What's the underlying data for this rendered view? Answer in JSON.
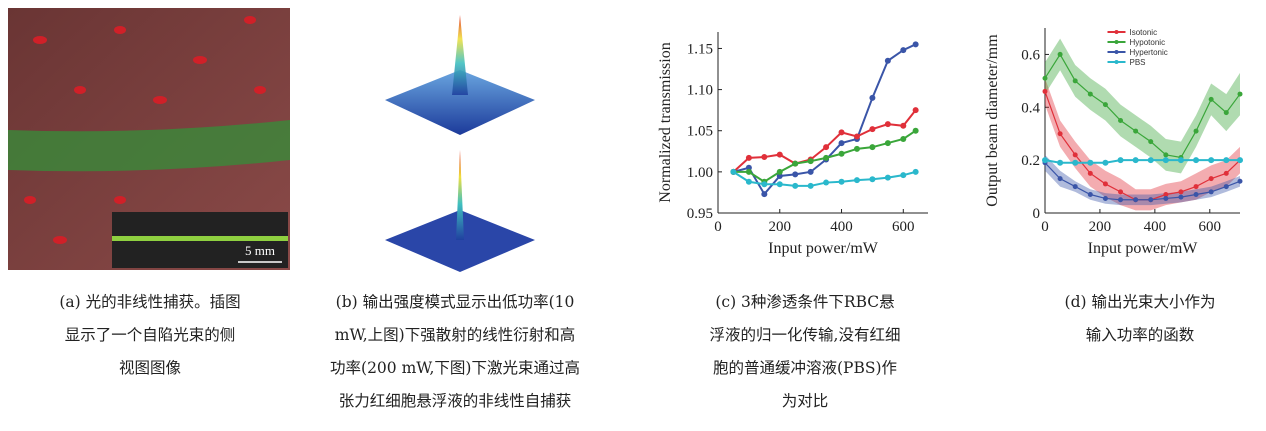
{
  "panels": {
    "a": {
      "scale_label": "5 mm",
      "caption": [
        "(a) 光的非线性捕获。插图",
        "显示了一个自陷光束的侧",
        "视图图像"
      ]
    },
    "b": {
      "caption": [
        "(b) 输出强度模式显示出低功率(10",
        "mW,上图)下强散射的线性衍射和高",
        "功率(200 mW,下图)下激光束通过高",
        "张力红细胞悬浮液的非线性自捕获"
      ]
    },
    "c": {
      "caption": [
        "(c) 3种渗透条件下RBC悬",
        "浮液的归一化传输,没有红细",
        "胞的普通缓冲溶液(PBS)作",
        "为对比"
      ]
    },
    "d": {
      "caption": [
        "(d) 输出光束大小作为",
        "输入功率的函数"
      ]
    }
  },
  "chart_data": [
    {
      "type": "line",
      "x_label": "Input power/mW",
      "y_label": "Normalized transmission",
      "x": [
        50,
        100,
        150,
        200,
        250,
        300,
        350,
        400,
        450,
        500,
        550,
        600,
        640
      ],
      "xlim": [
        0,
        680
      ],
      "xticks": [
        0,
        200,
        400,
        600
      ],
      "ylim": [
        0.95,
        1.17
      ],
      "yticks": [
        0.95,
        {
          "value": 1,
          "label": "1.00"
        },
        1.05,
        {
          "value": 1.1,
          "label": "1.10"
        },
        1.15
      ],
      "series": [
        {
          "color": "#3a55a8",
          "values": [
            1.0,
            1.005,
            0.973,
            0.995,
            0.997,
            1.0,
            1.015,
            1.035,
            1.04,
            1.09,
            1.135,
            1.148,
            1.155
          ]
        },
        {
          "color": "#e0303a",
          "values": [
            1.0,
            1.017,
            1.018,
            1.021,
            1.01,
            1.015,
            1.03,
            1.048,
            1.043,
            1.052,
            1.058,
            1.056,
            1.075
          ]
        },
        {
          "color": "#3aa63a",
          "values": [
            1.0,
            1.0,
            0.988,
            1.0,
            1.01,
            1.013,
            1.017,
            1.022,
            1.028,
            1.03,
            1.035,
            1.04,
            1.05
          ]
        },
        {
          "color": "#2ab8cc",
          "values": [
            1.0,
            0.988,
            0.985,
            0.985,
            0.983,
            0.983,
            0.987,
            0.988,
            0.99,
            0.991,
            0.993,
            0.996,
            1.0
          ]
        }
      ]
    },
    {
      "type": "line",
      "x_label": "Input power/mW",
      "y_label": "Output beam diameter/mm",
      "legend": "upper center",
      "x": [
        0,
        55,
        110,
        165,
        220,
        275,
        330,
        385,
        440,
        495,
        550,
        605,
        660,
        710
      ],
      "xlim": [
        0,
        710
      ],
      "xticks": [
        0,
        200,
        400,
        600
      ],
      "ylim": [
        0,
        0.7
      ],
      "yticks": [
        0,
        0.2,
        0.4,
        0.6
      ],
      "series": [
        {
          "name": "Isotonic",
          "color": "#e0303a",
          "values": [
            0.46,
            0.3,
            0.22,
            0.15,
            0.11,
            0.08,
            0.05,
            0.05,
            0.07,
            0.08,
            0.1,
            0.13,
            0.15,
            0.2
          ],
          "errors": [
            0.05,
            0.05,
            0.05,
            0.05,
            0.05,
            0.05,
            0.04,
            0.04,
            0.04,
            0.04,
            0.05,
            0.05,
            0.05,
            0.05
          ]
        },
        {
          "name": "Hypotonic",
          "color": "#3aa63a",
          "values": [
            0.51,
            0.6,
            0.5,
            0.45,
            0.41,
            0.35,
            0.31,
            0.27,
            0.22,
            0.21,
            0.31,
            0.43,
            0.38,
            0.45
          ],
          "errors": [
            0.06,
            0.06,
            0.06,
            0.06,
            0.06,
            0.06,
            0.06,
            0.06,
            0.06,
            0.06,
            0.06,
            0.06,
            0.07,
            0.08
          ]
        },
        {
          "name": "Hypertonic",
          "color": "#3a55a8",
          "values": [
            0.19,
            0.13,
            0.1,
            0.07,
            0.055,
            0.05,
            0.05,
            0.05,
            0.055,
            0.06,
            0.07,
            0.08,
            0.1,
            0.12
          ],
          "errors": [
            0.03,
            0.03,
            0.02,
            0.02,
            0.02,
            0.02,
            0.02,
            0.02,
            0.02,
            0.02,
            0.02,
            0.02,
            0.02,
            0.02
          ]
        },
        {
          "name": "PBS",
          "color": "#2ab8cc",
          "values": [
            0.2,
            0.19,
            0.19,
            0.19,
            0.19,
            0.2,
            0.2,
            0.2,
            0.2,
            0.2,
            0.2,
            0.2,
            0.2,
            0.2
          ]
        }
      ]
    }
  ]
}
